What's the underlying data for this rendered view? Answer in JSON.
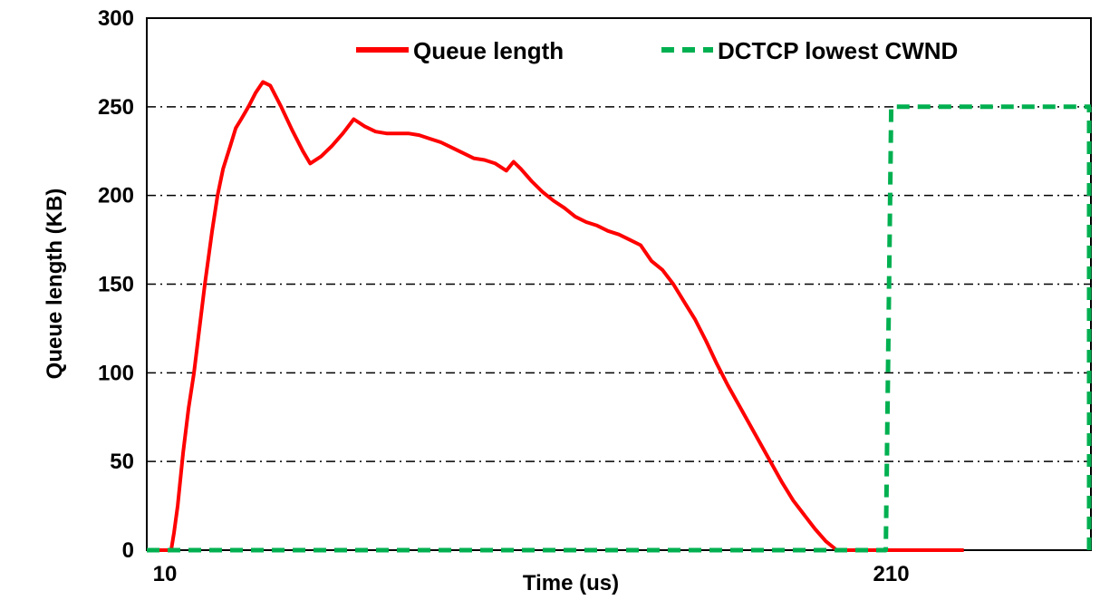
{
  "chart_data": {
    "type": "line",
    "title": "",
    "xlabel": "Time (us)",
    "ylabel": "Queue length (KB)",
    "xlim": [
      5,
      265
    ],
    "ylim": [
      0,
      300
    ],
    "x_ticks": [
      10,
      210
    ],
    "y_ticks": [
      0,
      50,
      100,
      150,
      200,
      250,
      300
    ],
    "grid": {
      "horizontal": true,
      "style": "dash-dot",
      "vertical": false
    },
    "legend": {
      "placement": "top-right",
      "entries": [
        "Queue length",
        "DCTCP lowest CWND"
      ]
    },
    "series": [
      {
        "name": "Queue length",
        "color": "#ff0000",
        "style": "solid",
        "x": [
          5,
          11.7,
          12.5,
          13.5,
          15,
          16.5,
          18,
          19.5,
          21,
          23,
          24.5,
          26,
          28,
          29.5,
          31,
          33,
          35,
          37,
          39,
          42,
          45,
          48,
          50,
          53,
          56,
          59,
          62,
          65,
          68,
          71,
          74,
          77,
          80,
          83,
          86,
          89,
          92,
          95,
          98,
          101,
          104,
          106,
          108,
          111,
          114,
          117,
          120,
          123,
          126,
          129,
          132,
          135,
          138,
          141,
          144,
          147,
          150,
          153,
          156,
          159,
          162,
          165,
          168,
          171,
          174,
          177,
          180,
          183,
          186,
          189,
          192,
          195,
          198,
          201,
          204,
          207,
          210,
          213,
          216,
          219,
          221,
          224,
          230
        ],
        "y": [
          0,
          0,
          10,
          25,
          55,
          80,
          100,
          125,
          150,
          180,
          200,
          215,
          228,
          238,
          243,
          250,
          258,
          264,
          262,
          250,
          237,
          225,
          218,
          222,
          228,
          235,
          243,
          239,
          236,
          235,
          235,
          235,
          234,
          232,
          230,
          227,
          224,
          221,
          220,
          218,
          214,
          219,
          215,
          208,
          202,
          197,
          193,
          188,
          185,
          183,
          180,
          178,
          175,
          172,
          163,
          158,
          150,
          140,
          130,
          118,
          105,
          93,
          82,
          71,
          60,
          49,
          38,
          28,
          20,
          12,
          5,
          0,
          0,
          0,
          0,
          0,
          0,
          0,
          0,
          0,
          0,
          0,
          0
        ]
      },
      {
        "name": "DCTCP lowest CWND",
        "color": "#00b050",
        "style": "dashed",
        "x": [
          5,
          208.5,
          210,
          210.5,
          265
        ],
        "y": [
          0,
          0,
          250,
          250,
          250
        ]
      }
    ],
    "extra_segments": [
      {
        "series": "DCTCP lowest CWND",
        "x": [
          265,
          265
        ],
        "y": [
          0,
          250
        ]
      }
    ]
  }
}
